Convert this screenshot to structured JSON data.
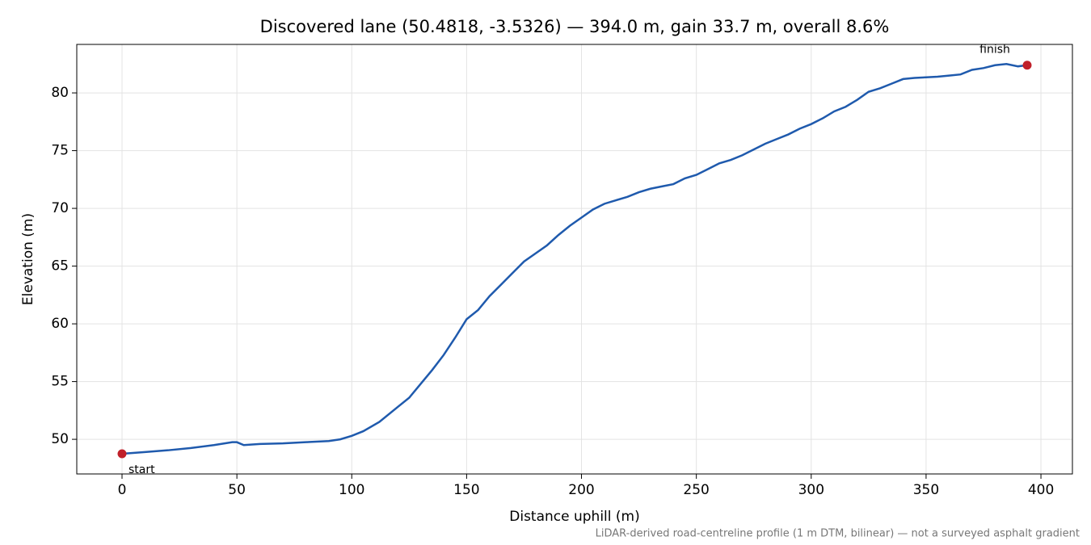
{
  "chart_data": {
    "type": "line",
    "title": "Discovered lane (50.4818, -3.5326) — 394.0 m, gain 33.7 m, overall 8.6%",
    "x_label": "Distance uphill (m)",
    "y_label": "Elevation (m)",
    "footnote": "LiDAR-derived road-centreline profile (1 m DTM, bilinear) — not a surveyed asphalt gradient",
    "x": [
      0,
      10,
      20,
      30,
      40,
      48,
      50,
      53,
      60,
      70,
      80,
      90,
      95,
      100,
      105,
      112,
      120,
      125,
      130,
      135,
      140,
      145,
      150,
      155,
      160,
      165,
      170,
      175,
      180,
      185,
      190,
      195,
      200,
      205,
      210,
      215,
      220,
      225,
      230,
      235,
      240,
      245,
      250,
      255,
      260,
      265,
      270,
      275,
      280,
      285,
      290,
      295,
      300,
      305,
      310,
      315,
      320,
      325,
      330,
      335,
      340,
      345,
      350,
      355,
      360,
      365,
      370,
      375,
      380,
      385,
      390,
      394
    ],
    "series": [
      {
        "name": "Elevation",
        "color": "#1f5aad",
        "values": [
          48.75,
          48.9,
          49.05,
          49.25,
          49.5,
          49.75,
          49.75,
          49.5,
          49.6,
          49.65,
          49.75,
          49.85,
          50.0,
          50.3,
          50.7,
          51.5,
          52.8,
          53.6,
          54.8,
          56.0,
          57.3,
          58.8,
          60.4,
          61.2,
          62.4,
          63.4,
          64.4,
          65.4,
          66.1,
          66.8,
          67.7,
          68.5,
          69.2,
          69.9,
          70.4,
          70.7,
          71.0,
          71.4,
          71.7,
          71.9,
          72.1,
          72.6,
          72.9,
          73.4,
          73.9,
          74.2,
          74.6,
          75.1,
          75.6,
          76.0,
          76.4,
          76.9,
          77.3,
          77.8,
          78.4,
          78.8,
          79.4,
          80.1,
          80.4,
          80.8,
          81.2,
          81.3,
          81.35,
          81.4,
          81.5,
          81.6,
          82.0,
          82.15,
          82.4,
          82.5,
          82.3,
          82.4
        ]
      }
    ],
    "markers": [
      {
        "label": "start",
        "x": 0,
        "y": 48.75,
        "color": "#c0202a"
      },
      {
        "label": "finish",
        "x": 394,
        "y": 82.4,
        "color": "#c0202a"
      }
    ],
    "xlim": [
      -19.7,
      413.7
    ],
    "xticks": [
      0,
      50,
      100,
      150,
      200,
      250,
      300,
      350,
      400
    ],
    "ylim": [
      47.0,
      84.2
    ],
    "yticks": [
      50,
      55,
      60,
      65,
      70,
      75,
      80
    ],
    "grid": true
  }
}
